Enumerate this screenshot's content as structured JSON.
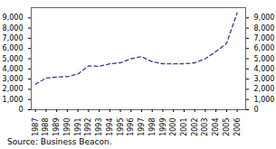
{
  "chart_data": {
    "type": "line",
    "x": [
      1987,
      1988,
      1989,
      1990,
      1991,
      1992,
      1993,
      1994,
      1995,
      1996,
      1997,
      1998,
      1999,
      2000,
      2001,
      2002,
      2003,
      2004,
      2005,
      2006
    ],
    "values": [
      2500,
      3100,
      3200,
      3250,
      3500,
      4300,
      4250,
      4500,
      4600,
      5000,
      5200,
      4700,
      4500,
      4500,
      4500,
      4600,
      5000,
      5700,
      6500,
      9500
    ],
    "color": "#3a3a9a",
    "line_style": "dashed",
    "xlim": [
      1986.6,
      2006.8
    ],
    "xticks": [
      1987,
      1988,
      1989,
      1990,
      1991,
      1992,
      1993,
      1994,
      1995,
      1996,
      1997,
      1998,
      1999,
      2000,
      2001,
      2002,
      2003,
      2004,
      2005,
      2006
    ],
    "ylim": [
      0,
      10000
    ],
    "yticks": [
      0,
      {
        "value": 1000,
        "label": "1,000"
      },
      {
        "value": 2000,
        "label": "2,000"
      },
      {
        "value": 3000,
        "label": "3,000"
      },
      {
        "value": 4000,
        "label": "4,000"
      },
      {
        "value": 5000,
        "label": "5,000"
      },
      {
        "value": 6000,
        "label": "6,000"
      },
      {
        "value": 7000,
        "label": "7,000"
      },
      {
        "value": 8000,
        "label": "8,000"
      },
      {
        "value": 9000,
        "label": "9,000"
      }
    ],
    "grid": false,
    "annotation": "Source: Business Beacon."
  }
}
